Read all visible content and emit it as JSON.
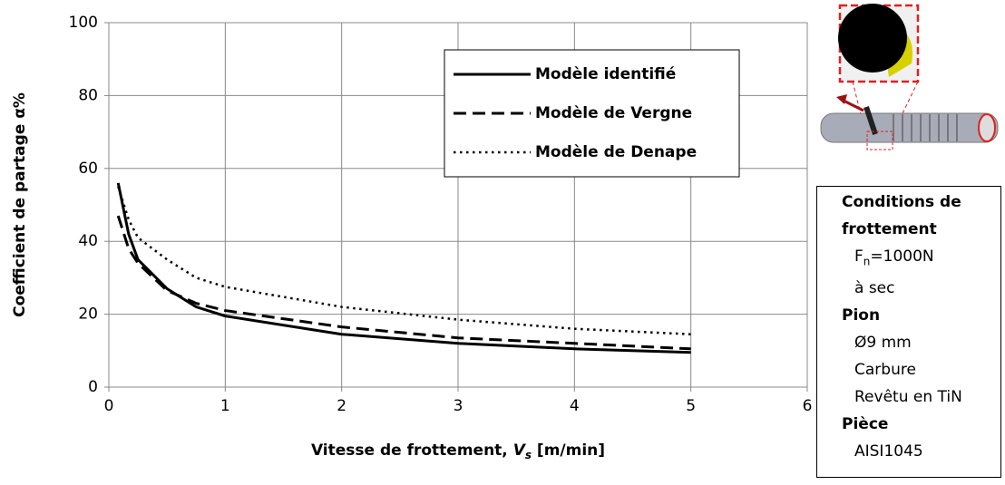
{
  "chart_data": {
    "type": "line",
    "ylabel": "Coefficient de partage α%",
    "xlabel": {
      "text": "Vitesse de frottement, ",
      "var": "V",
      "sub": "s",
      "unit": " [m/min]"
    },
    "x": [
      0.08,
      0.17,
      0.25,
      0.5,
      0.75,
      1,
      2,
      3,
      4,
      5
    ],
    "series": [
      {
        "name": "Modèle identifié",
        "color": "#000000",
        "style": "solid",
        "values": [
          56,
          42,
          35,
          27,
          22,
          19.5,
          14.5,
          12,
          10.5,
          9.5
        ]
      },
      {
        "name": "Modèle de Vergne",
        "color": "#000000",
        "style": "dashed",
        "values": [
          47,
          38,
          34,
          26.5,
          23,
          21,
          16.5,
          13.5,
          12,
          10.5
        ]
      },
      {
        "name": "Modèle de Denape",
        "color": "#000000",
        "style": "dotted",
        "values": [
          55,
          46,
          41,
          35,
          30,
          27.5,
          22,
          18.5,
          16,
          14.5
        ]
      }
    ],
    "xlim": [
      0,
      6
    ],
    "xticks": [
      0,
      1,
      2,
      3,
      4,
      5,
      6
    ],
    "ylim": [
      0,
      100
    ],
    "yticks": [
      0,
      20,
      40,
      60,
      80,
      100
    ],
    "grid": true,
    "legend": "upper right"
  },
  "panel": {
    "title": "Conditions de frottement",
    "force": {
      "base": "F",
      "sub": "n",
      "rest": "=1000N"
    },
    "env": "à sec",
    "pin_title": "Pion",
    "pin": [
      "Ø9 mm",
      "Carbure",
      "Revêtu en TiN"
    ],
    "part_title": "Pièce",
    "part": "AISI1045"
  }
}
